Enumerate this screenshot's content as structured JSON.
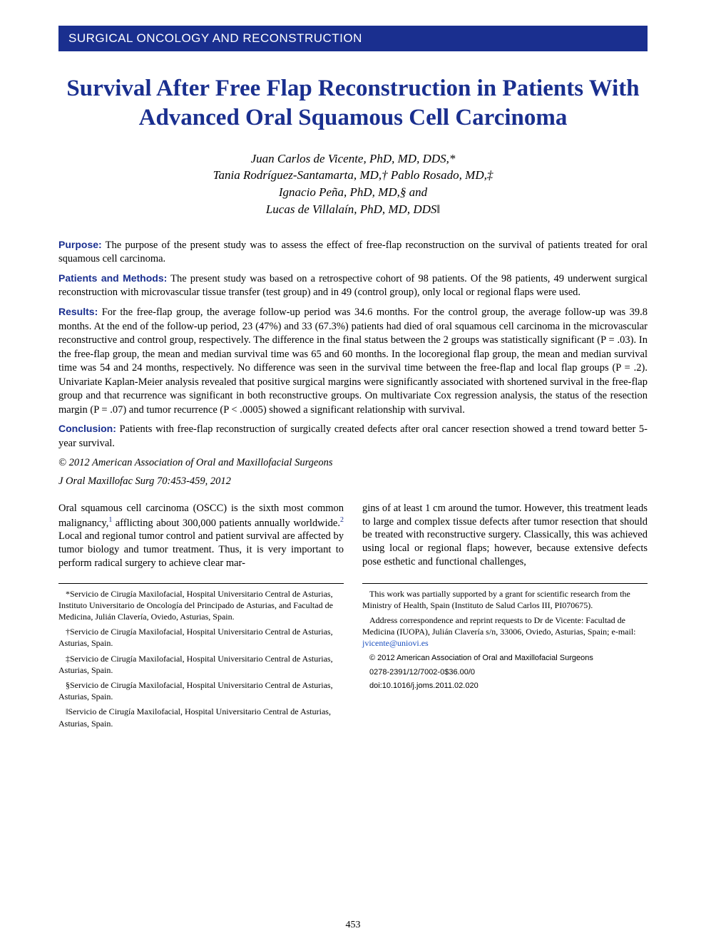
{
  "banner": "SURGICAL ONCOLOGY AND RECONSTRUCTION",
  "title": "Survival After Free Flap Reconstruction in Patients With Advanced Oral Squamous Cell Carcinoma",
  "authors": {
    "line1": "Juan Carlos de Vicente, PhD, MD, DDS,*",
    "line2": "Tania Rodríguez-Santamarta, MD,† Pablo Rosado, MD,‡",
    "line3": "Ignacio Peña, PhD, MD,§ and",
    "line4": "Lucas de Villalaín, PhD, MD, DDS‖"
  },
  "abstract": {
    "purpose_label": "Purpose:",
    "purpose": "The purpose of the present study was to assess the effect of free-flap reconstruction on the survival of patients treated for oral squamous cell carcinoma.",
    "patients_label": "Patients and Methods:",
    "patients": "The present study was based on a retrospective cohort of 98 patients. Of the 98 patients, 49 underwent surgical reconstruction with microvascular tissue transfer (test group) and in 49 (control group), only local or regional flaps were used.",
    "results_label": "Results:",
    "results": "For the free-flap group, the average follow-up period was 34.6 months. For the control group, the average follow-up was 39.8 months. At the end of the follow-up period, 23 (47%) and 33 (67.3%) patients had died of oral squamous cell carcinoma in the microvascular reconstructive and control group, respectively. The difference in the final status between the 2 groups was statistically significant (P = .03). In the free-flap group, the mean and median survival time was 65 and 60 months. In the locoregional flap group, the mean and median survival time was 54 and 24 months, respectively. No difference was seen in the survival time between the free-flap and local flap groups (P = .2). Univariate Kaplan-Meier analysis revealed that positive surgical margins were significantly associated with shortened survival in the free-flap group and that recurrence was significant in both reconstructive groups. On multivariate Cox regression analysis, the status of the resection margin (P = .07) and tumor recurrence (P < .0005) showed a significant relationship with survival.",
    "conclusion_label": "Conclusion:",
    "conclusion": "Patients with free-flap reconstruction of surgically created defects after oral cancer resection showed a trend toward better 5-year survival.",
    "copyright": "© 2012 American Association of Oral and Maxillofacial Surgeons",
    "journal_ref": "J Oral Maxillofac Surg 70:453-459, 2012"
  },
  "body": {
    "col1_a": "Oral squamous cell carcinoma (OSCC) is the sixth most common malignancy,",
    "col1_b": " afflicting about 300,000 patients annually worldwide.",
    "col1_c": " Local and regional tumor control and patient survival are affected by tumor biology and tumor treatment. Thus, it is very important to perform radical surgery to achieve clear mar-",
    "ref1": "1",
    "ref2": "2",
    "col2": "gins of at least 1 cm around the tumor. However, this treatment leads to large and complex tissue defects after tumor resection that should be treated with reconstructive surgery. Classically, this was achieved using local or regional flaps; however, because extensive defects pose esthetic and functional challenges,"
  },
  "affiliations": {
    "left": [
      "*Servicio de Cirugía Maxilofacial, Hospital Universitario Central de Asturias, Instituto Universitario de Oncología del Principado de Asturias, and Facultad de Medicina, Julián Clavería, Oviedo, Asturias, Spain.",
      "†Servicio de Cirugía Maxilofacial, Hospital Universitario Central de Asturias, Asturias, Spain.",
      "‡Servicio de Cirugía Maxilofacial, Hospital Universitario Central de Asturias, Asturias, Spain.",
      "§Servicio de Cirugía Maxilofacial, Hospital Universitario Central de Asturias, Asturias, Spain.",
      "‖Servicio de Cirugía Maxilofacial, Hospital Universitario Central de Asturias, Asturias, Spain."
    ],
    "right_funding": "This work was partially supported by a grant for scientific research from the Ministry of Health, Spain (Instituto de Salud Carlos III, PI070675).",
    "right_corr_a": "Address correspondence and reprint requests to Dr de Vicente: Facultad de Medicina (IUOPA), Julián Clavería s/n, 33006, Oviedo, Asturias, Spain; e-mail: ",
    "right_email": "jvicente@uniovi.es",
    "right_copy": "© 2012 American Association of Oral and Maxillofacial Surgeons",
    "right_issn": "0278-2391/12/7002-0$36.00/0",
    "right_doi": "doi:10.1016/j.joms.2011.02.020"
  },
  "page_number": "453",
  "colors": {
    "brand_blue": "#1a2f8f",
    "link_blue": "#1a4fbf",
    "text": "#000000",
    "background": "#ffffff"
  }
}
